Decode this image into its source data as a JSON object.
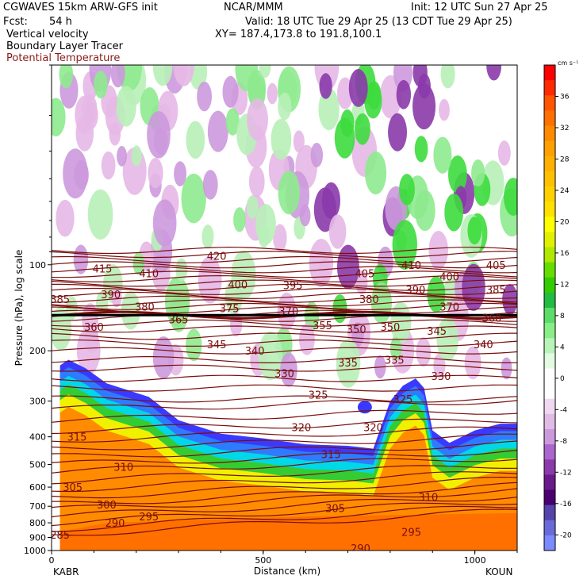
{
  "header": {
    "model": "CGWAVES 15km ARW-GFS init",
    "org": "NCAR/MMM",
    "init": "Init: 12 UTC Sun 27 Apr 25",
    "fcst_label": "Fcst:",
    "fcst_value": "54 h",
    "valid": "Valid: 18 UTC Tue 29 Apr 25 (13 CDT Tue 29 Apr 25)",
    "field1": "Vertical velocity",
    "field2": "Boundary Layer Tracer",
    "field3": "Potential Temperature",
    "xy": "XY= 187.4,173.8 to 191.8,100.1"
  },
  "footer": {
    "left_station": "KABR",
    "right_station": "KOUN"
  },
  "colors": {
    "theta_line": "#7a0d0d",
    "tracer_outer": "#3a3aff",
    "tracer_blue": "#2e7bff",
    "tracer_cyan": "#00d8e8",
    "tracer_green": "#33cc33",
    "tracer_yellow": "#f0f000",
    "tracer_orange": "#ff8c00",
    "w_pos": "#b8f0b8",
    "w_neg": "#e6b8e6"
  },
  "chart_data": {
    "type": "heatmap",
    "xlabel": "Distance (km)",
    "ylabel": "Pressure (hPa), log scale",
    "xlim": [
      0,
      1100
    ],
    "ylim_hpa": [
      1000,
      20
    ],
    "y_scale": "log",
    "x_ticks": [
      "0",
      "500",
      "1000"
    ],
    "y_ticks": [
      "100",
      "200",
      "300",
      "400",
      "500",
      "600",
      "700",
      "800",
      "900",
      "1000"
    ],
    "tropopause_hpa": 150,
    "colorbar": {
      "units": "cm s⁻¹",
      "min": -22,
      "max": 40,
      "step": 2,
      "tick_labels": [
        "36",
        "32",
        "28",
        "24",
        "20",
        "16",
        "12",
        "8",
        "4",
        "0",
        "-4",
        "-8",
        "-12",
        "-16",
        "-20"
      ],
      "colors": [
        "#ff0000",
        "#ff2a00",
        "#ff5500",
        "#ff7000",
        "#ff8a00",
        "#ffa000",
        "#ffb000",
        "#ffc000",
        "#ffd000",
        "#ffe000",
        "#ffff00",
        "#e0f000",
        "#b0e800",
        "#66dd00",
        "#33cc00",
        "#22bb44",
        "#5cdd6a",
        "#88ee88",
        "#b8f4b8",
        "#e2fbe2",
        "#ffffff",
        "#ffffff",
        "#f0d8f0",
        "#e0bbe6",
        "#cc99dd",
        "#aa66cc",
        "#8a3aaa",
        "#6a1a8a",
        "#4a0070",
        "#5544aa",
        "#6a6ad8",
        "#7a8aff"
      ]
    },
    "theta_isentropes": [
      {
        "label": "285",
        "x_km": 20,
        "p": 880
      },
      {
        "label": "290",
        "x_km": 150,
        "p": 800
      },
      {
        "label": "290",
        "x_km": 730,
        "p": 980
      },
      {
        "label": "295",
        "x_km": 230,
        "p": 760
      },
      {
        "label": "295",
        "x_km": 850,
        "p": 860
      },
      {
        "label": "300",
        "x_km": 130,
        "p": 690
      },
      {
        "label": "305",
        "x_km": 50,
        "p": 600
      },
      {
        "label": "305",
        "x_km": 670,
        "p": 710
      },
      {
        "label": "310",
        "x_km": 170,
        "p": 510
      },
      {
        "label": "310",
        "x_km": 890,
        "p": 650
      },
      {
        "label": "315",
        "x_km": 60,
        "p": 400
      },
      {
        "label": "315",
        "x_km": 660,
        "p": 460
      },
      {
        "label": "320",
        "x_km": 590,
        "p": 370
      },
      {
        "label": "320",
        "x_km": 760,
        "p": 370
      },
      {
        "label": "325",
        "x_km": 630,
        "p": 285
      },
      {
        "label": "325",
        "x_km": 830,
        "p": 295
      },
      {
        "label": "330",
        "x_km": 550,
        "p": 240
      },
      {
        "label": "330",
        "x_km": 920,
        "p": 245
      },
      {
        "label": "335",
        "x_km": 700,
        "p": 220
      },
      {
        "label": "335",
        "x_km": 810,
        "p": 215
      },
      {
        "label": "340",
        "x_km": 480,
        "p": 200
      },
      {
        "label": "340",
        "x_km": 1020,
        "p": 190
      },
      {
        "label": "345",
        "x_km": 390,
        "p": 190
      },
      {
        "label": "345",
        "x_km": 910,
        "p": 170
      },
      {
        "label": "350",
        "x_km": 720,
        "p": 168
      },
      {
        "label": "350",
        "x_km": 800,
        "p": 165
      },
      {
        "label": "355",
        "x_km": 640,
        "p": 163
      },
      {
        "label": "360",
        "x_km": 100,
        "p": 165
      },
      {
        "label": "360",
        "x_km": 1040,
        "p": 153
      },
      {
        "label": "365",
        "x_km": 300,
        "p": 155
      },
      {
        "label": "370",
        "x_km": 560,
        "p": 145
      },
      {
        "label": "370",
        "x_km": 940,
        "p": 140
      },
      {
        "label": "375",
        "x_km": 420,
        "p": 142
      },
      {
        "label": "380",
        "x_km": 220,
        "p": 140
      },
      {
        "label": "380",
        "x_km": 750,
        "p": 132
      },
      {
        "label": "385",
        "x_km": 20,
        "p": 132
      },
      {
        "label": "385",
        "x_km": 1050,
        "p": 122
      },
      {
        "label": "390",
        "x_km": 140,
        "p": 127
      },
      {
        "label": "390",
        "x_km": 860,
        "p": 122
      },
      {
        "label": "395",
        "x_km": 570,
        "p": 118
      },
      {
        "label": "400",
        "x_km": 440,
        "p": 117
      },
      {
        "label": "400",
        "x_km": 940,
        "p": 110
      },
      {
        "label": "405",
        "x_km": 740,
        "p": 107
      },
      {
        "label": "405",
        "x_km": 1050,
        "p": 100
      },
      {
        "label": "410",
        "x_km": 230,
        "p": 107
      },
      {
        "label": "410",
        "x_km": 850,
        "p": 100
      },
      {
        "label": "415",
        "x_km": 120,
        "p": 103
      },
      {
        "label": "420",
        "x_km": 390,
        "p": 93
      }
    ]
  }
}
